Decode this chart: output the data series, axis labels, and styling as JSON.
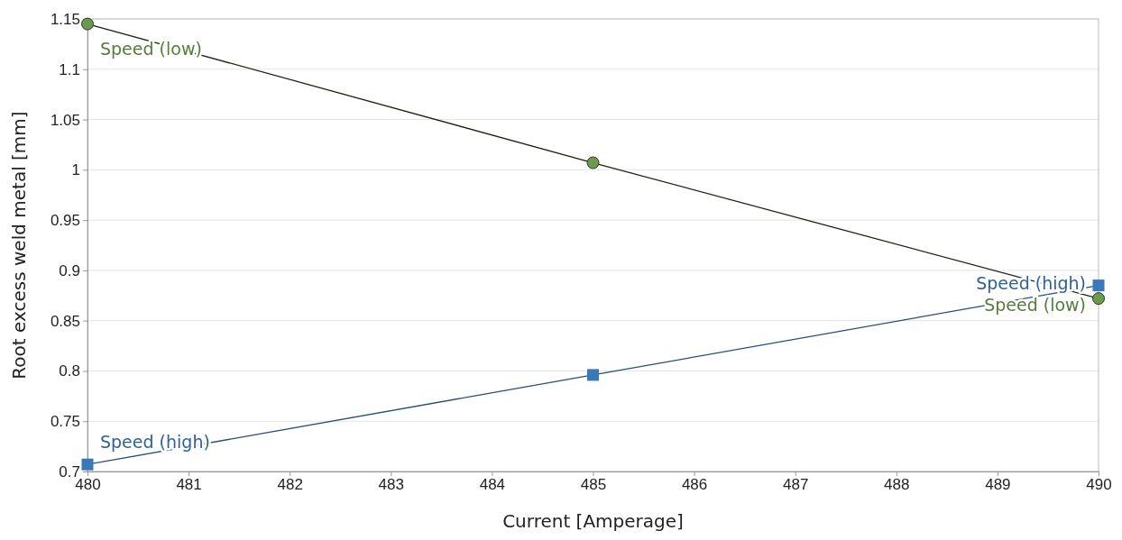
{
  "chart_data": {
    "type": "line",
    "xlabel": "Current [Amperage]",
    "ylabel": "Root excess weld metal [mm]",
    "x": [
      480,
      485,
      490
    ],
    "series": [
      {
        "name": "Speed (low)",
        "color": "#6a9a4a",
        "marker": "circle",
        "values": [
          1.145,
          1.007,
          0.872
        ]
      },
      {
        "name": "Speed (high)",
        "color": "#3a78b8",
        "marker": "square",
        "values": [
          0.707,
          0.796,
          0.885
        ]
      }
    ],
    "xlim": [
      480,
      490
    ],
    "xticks": [
      480,
      481,
      482,
      483,
      484,
      485,
      486,
      487,
      488,
      489,
      490
    ],
    "ylim": [
      0.7,
      1.15
    ],
    "yticks": [
      0.7,
      0.75,
      0.8,
      0.85,
      0.9,
      0.95,
      1,
      1.05,
      1.1,
      1.15
    ],
    "grid": "y"
  }
}
